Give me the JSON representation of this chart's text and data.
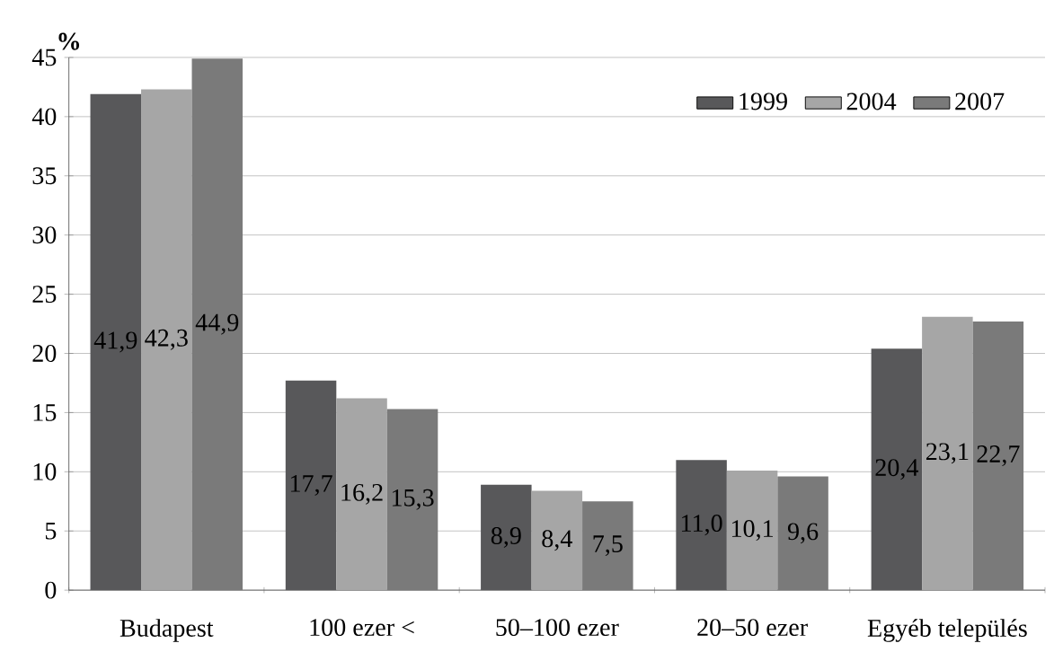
{
  "chart_data": {
    "type": "bar",
    "ylabel": "%",
    "categories": [
      "Budapest",
      "100 ezer <",
      "50–100 ezer",
      "20–50 ezer",
      "Egyéb település"
    ],
    "series": [
      {
        "name": "1999",
        "color": "#58585a",
        "values": [
          41.9,
          17.7,
          8.9,
          11.0,
          20.4
        ],
        "value_labels": [
          "41,9",
          "17,7",
          "8,9",
          "11,0",
          "20,4"
        ]
      },
      {
        "name": "2004",
        "color": "#a6a6a6",
        "values": [
          42.3,
          16.2,
          8.4,
          10.1,
          23.1
        ],
        "value_labels": [
          "42,3",
          "16,2",
          "8,4",
          "10,1",
          "23,1"
        ]
      },
      {
        "name": "2007",
        "color": "#7a7a7a",
        "values": [
          44.9,
          15.3,
          7.5,
          9.6,
          22.7
        ],
        "value_labels": [
          "44,9",
          "15,3",
          "7,5",
          "9,6",
          "22,7"
        ]
      }
    ],
    "ylim": [
      0,
      45
    ],
    "yticks": [
      0,
      5,
      10,
      15,
      20,
      25,
      30,
      35,
      40,
      45
    ],
    "grid": "y",
    "legend": "top right"
  }
}
